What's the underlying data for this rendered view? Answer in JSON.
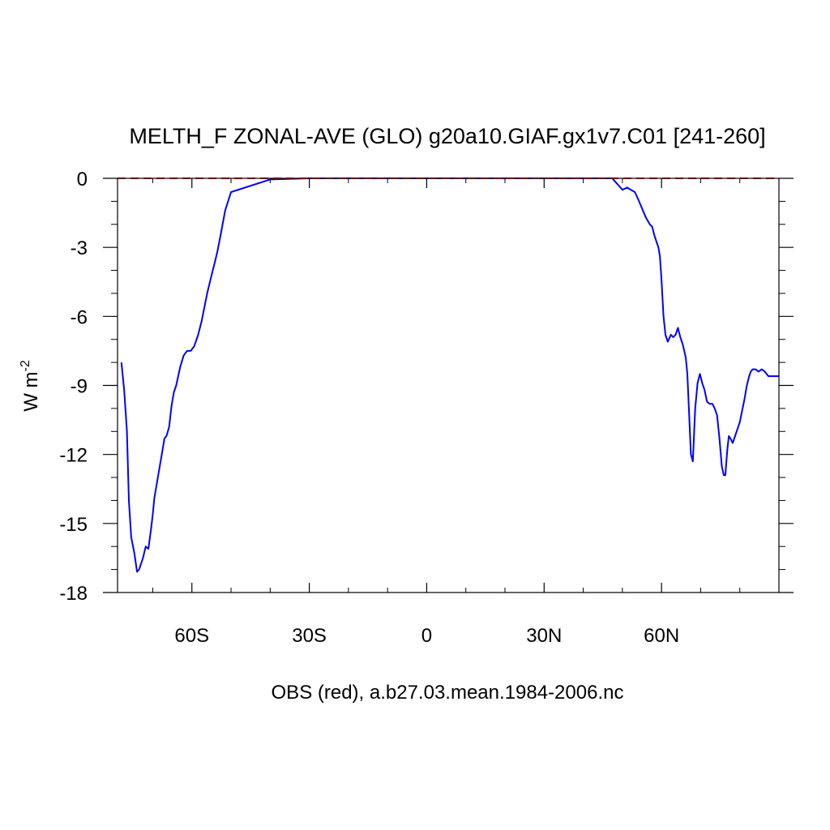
{
  "chart_data": {
    "type": "line",
    "title": "MELTH_F ZONAL-AVE (GLO) g20a10.GIAF.gx1v7.C01 [241-260]",
    "ylabel": "W m",
    "ylabel_exponent": "-2",
    "xlabel": "OBS (red), a.b27.03.mean.1984-2006.nc",
    "xlim": [
      -79,
      90
    ],
    "ylim": [
      -18,
      0
    ],
    "x_ticks": [
      {
        "value": -60,
        "label": "60S"
      },
      {
        "value": -30,
        "label": "30S"
      },
      {
        "value": 0,
        "label": "0"
      },
      {
        "value": 30,
        "label": "30N"
      },
      {
        "value": 60,
        "label": "60N"
      }
    ],
    "y_ticks": [
      {
        "value": 0,
        "label": "0"
      },
      {
        "value": -3,
        "label": "-3"
      },
      {
        "value": -6,
        "label": "-6"
      },
      {
        "value": -9,
        "label": "-9"
      },
      {
        "value": -12,
        "label": "-12"
      },
      {
        "value": -15,
        "label": "-15"
      },
      {
        "value": -18,
        "label": "-18"
      }
    ],
    "grid": false,
    "series": [
      {
        "color": "#0000ff",
        "dash": "solid",
        "x": [
          -78,
          -77.3,
          -76.6,
          -76.1,
          -75.5,
          -74.7,
          -74.0,
          -73.5,
          -73.1,
          -72.5,
          -71.8,
          -71.1,
          -70.4,
          -70.0,
          -69.6,
          -69.0,
          -68.4,
          -67.7,
          -67.0,
          -66.5,
          -65.8,
          -65.2,
          -64.6,
          -64.0,
          -63.0,
          -62.1,
          -61.2,
          -60.3,
          -59.4,
          -58.4,
          -57.5,
          -56.8,
          -56.1,
          -55.4,
          -54.8,
          -54.2,
          -53.5,
          -52.7,
          -51.5,
          -50,
          -40,
          -30,
          -20,
          -10,
          0,
          10,
          20,
          30,
          40,
          44,
          46.2,
          47.4,
          48.2,
          49.0,
          50.0,
          51.2,
          52.2,
          53.2,
          54.0,
          55.0,
          56.0,
          57.0,
          57.6,
          58.2,
          58.8,
          59.2,
          59.6,
          60.0,
          60.5,
          61.0,
          61.6,
          62.4,
          63.0,
          63.6,
          64.2,
          64.8,
          65.4,
          65.8,
          66.2,
          66.6,
          67.0,
          67.5,
          68.0,
          68.6,
          69.2,
          69.8,
          70.4,
          71.0,
          71.6,
          72.3,
          73.0,
          73.6,
          74.2,
          74.8,
          75.4,
          75.9,
          76.3,
          76.8,
          77.2,
          77.6,
          78.2,
          78.8,
          79.4,
          80.0,
          80.6,
          81.2,
          81.8,
          82.4,
          82.8,
          83.3,
          84.0,
          84.8,
          85.6,
          86.4,
          87.3,
          88.0,
          89.0,
          90.0
        ],
        "y": [
          -8.0,
          -9.2,
          -11.0,
          -14.0,
          -15.6,
          -16.3,
          -17.1,
          -17.0,
          -16.8,
          -16.5,
          -16.0,
          -16.1,
          -15.2,
          -14.6,
          -13.9,
          -13.3,
          -12.7,
          -12.0,
          -11.3,
          -11.2,
          -10.8,
          -9.9,
          -9.3,
          -9.0,
          -8.2,
          -7.7,
          -7.5,
          -7.5,
          -7.3,
          -6.8,
          -6.2,
          -5.6,
          -5.0,
          -4.5,
          -4.1,
          -3.7,
          -3.2,
          -2.5,
          -1.4,
          -0.6,
          -0.05,
          0,
          0,
          0,
          0,
          0,
          0,
          0,
          0,
          0,
          0,
          0,
          -0.15,
          -0.3,
          -0.5,
          -0.4,
          -0.5,
          -0.6,
          -0.9,
          -1.3,
          -1.7,
          -2.0,
          -2.1,
          -2.5,
          -2.8,
          -3.0,
          -3.4,
          -4.4,
          -6.0,
          -6.8,
          -7.1,
          -6.8,
          -6.9,
          -6.8,
          -6.5,
          -6.9,
          -7.2,
          -7.5,
          -7.8,
          -8.5,
          -10.0,
          -12.0,
          -12.3,
          -10.0,
          -8.9,
          -8.5,
          -8.9,
          -9.2,
          -9.7,
          -9.8,
          -9.8,
          -10.0,
          -10.3,
          -11.3,
          -12.5,
          -12.9,
          -12.9,
          -11.8,
          -11.2,
          -11.3,
          -11.5,
          -11.2,
          -10.9,
          -10.6,
          -10.1,
          -9.6,
          -9.0,
          -8.6,
          -8.4,
          -8.3,
          -8.3,
          -8.4,
          -8.3,
          -8.4,
          -8.6,
          -8.6,
          -8.6,
          -8.6
        ]
      },
      {
        "color": "#ff0000",
        "dash": "dashed",
        "x": [
          -79,
          90
        ],
        "y": [
          0,
          0
        ]
      }
    ]
  }
}
